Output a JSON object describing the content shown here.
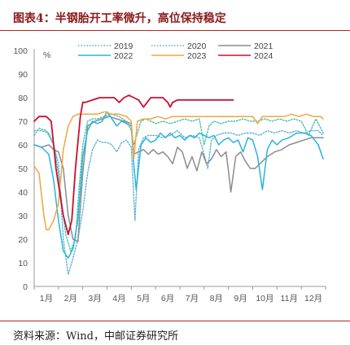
{
  "header": {
    "title": "图表4：半钢胎开工率微升，高位保持稳定",
    "source": "资料来源：Wind，中邮证券研究所"
  },
  "chart_data": {
    "type": "line",
    "title": "",
    "ylabel": "",
    "yunit": "%",
    "ylim": [
      0,
      100
    ],
    "yticks": [
      0,
      10,
      20,
      30,
      40,
      50,
      60,
      70,
      80,
      90,
      100
    ],
    "xlim": [
      1,
      13
    ],
    "categories": [
      "1月",
      "2月",
      "3月",
      "4月",
      "5月",
      "6月",
      "7月",
      "8月",
      "9月",
      "10月",
      "11月",
      "12月"
    ],
    "legend_position": "top",
    "grid": false,
    "series": [
      {
        "name": "2019",
        "color": "#3fbfa8",
        "style": "dotted",
        "x": [
          1.0,
          1.2,
          1.5,
          1.8,
          2.0,
          2.15,
          2.3,
          2.5,
          2.7,
          2.85,
          3.0,
          3.2,
          3.4,
          3.6,
          3.9,
          4.2,
          4.5,
          4.8,
          5.0,
          5.1,
          5.25,
          5.4,
          5.6,
          5.8,
          6.0,
          6.3,
          6.6,
          6.9,
          7.2,
          7.5,
          7.8,
          8.0,
          8.2,
          8.4,
          8.7,
          9.0,
          9.3,
          9.6,
          9.9,
          10.2,
          10.5,
          10.8,
          11.1,
          11.4,
          11.7,
          12.0,
          12.3,
          12.6,
          12.9
        ],
        "y": [
          64,
          67,
          66,
          60,
          48,
          34,
          22,
          15,
          20,
          42,
          60,
          70,
          71,
          71,
          72,
          73,
          72,
          70,
          66,
          60,
          65,
          70,
          71,
          70,
          69,
          70,
          69,
          70,
          71,
          70,
          71,
          60,
          68,
          70,
          69,
          70,
          70,
          71,
          70,
          70,
          71,
          70,
          71,
          70,
          71,
          70,
          64,
          71,
          65
        ]
      },
      {
        "name": "2020",
        "color": "#5ab0d8",
        "style": "dotted",
        "x": [
          1.0,
          1.3,
          1.6,
          1.8,
          2.0,
          2.2,
          2.4,
          2.6,
          2.8,
          3.0,
          3.2,
          3.4,
          3.6,
          3.8,
          4.0,
          4.2,
          4.4,
          4.6,
          4.8,
          5.0,
          5.15,
          5.3,
          5.5,
          5.7,
          6.0,
          6.3,
          6.6,
          6.9,
          7.2,
          7.5,
          7.8,
          8.0,
          8.15,
          8.3,
          8.5,
          8.8,
          9.1,
          9.4,
          9.7,
          10.0,
          10.3,
          10.6,
          10.9,
          11.2,
          11.5,
          11.8,
          12.1,
          12.4,
          12.7,
          12.9
        ],
        "y": [
          66,
          66,
          65,
          60,
          52,
          20,
          5,
          12,
          20,
          32,
          48,
          58,
          62,
          61,
          61,
          60,
          57,
          61,
          62,
          59,
          28,
          58,
          63,
          64,
          64,
          63,
          64,
          66,
          63,
          64,
          63,
          56,
          50,
          62,
          64,
          65,
          65,
          64,
          65,
          65,
          64,
          66,
          65,
          66,
          65,
          66,
          65,
          66,
          66,
          64
        ]
      },
      {
        "name": "2021",
        "color": "#8c8c8c",
        "style": "solid",
        "x": [
          1.0,
          1.3,
          1.6,
          1.8,
          2.0,
          2.2,
          2.4,
          2.6,
          2.8,
          3.0,
          3.2,
          3.5,
          3.8,
          4.1,
          4.4,
          4.7,
          5.0,
          5.1,
          5.3,
          5.5,
          5.7,
          5.9,
          6.1,
          6.3,
          6.5,
          6.7,
          6.9,
          7.1,
          7.3,
          7.5,
          7.7,
          7.9,
          8.1,
          8.3,
          8.5,
          8.7,
          8.9,
          9.0,
          9.1,
          9.3,
          9.5,
          9.7,
          9.9,
          10.1,
          10.3,
          10.6,
          10.9,
          11.2,
          11.5,
          11.8,
          12.1,
          12.4,
          12.7,
          12.9
        ],
        "y": [
          60,
          59,
          60,
          58,
          57,
          50,
          30,
          20,
          19,
          48,
          68,
          70,
          71,
          72,
          71,
          70,
          69,
          56,
          57,
          58,
          56,
          58,
          56,
          57,
          55,
          52,
          59,
          57,
          50,
          55,
          49,
          57,
          52,
          54,
          58,
          55,
          57,
          49,
          40,
          55,
          57,
          53,
          50,
          50,
          52,
          55,
          57,
          58,
          60,
          61,
          62,
          63,
          63,
          63
        ]
      },
      {
        "name": "2022",
        "color": "#29b4e0",
        "style": "solid",
        "x": [
          1.0,
          1.3,
          1.6,
          1.8,
          2.0,
          2.2,
          2.4,
          2.6,
          2.8,
          3.0,
          3.2,
          3.4,
          3.6,
          3.8,
          4.0,
          4.2,
          4.4,
          4.6,
          4.8,
          5.0,
          5.1,
          5.2,
          5.4,
          5.6,
          5.8,
          6.0,
          6.2,
          6.4,
          6.6,
          6.8,
          7.0,
          7.2,
          7.4,
          7.6,
          7.8,
          8.0,
          8.2,
          8.4,
          8.6,
          8.8,
          9.0,
          9.2,
          9.4,
          9.6,
          9.8,
          10.0,
          10.2,
          10.4,
          10.6,
          10.8,
          11.0,
          11.2,
          11.5,
          11.8,
          12.1,
          12.4,
          12.7,
          12.9
        ],
        "y": [
          60,
          59,
          56,
          45,
          28,
          15,
          12,
          16,
          28,
          55,
          66,
          70,
          69,
          70,
          74,
          71,
          68,
          70,
          69,
          68,
          52,
          41,
          60,
          63,
          61,
          62,
          65,
          63,
          65,
          63,
          64,
          62,
          64,
          63,
          65,
          64,
          63,
          64,
          60,
          62,
          63,
          61,
          62,
          57,
          63,
          62,
          55,
          41,
          58,
          62,
          60,
          62,
          63,
          65,
          65,
          64,
          60,
          54
        ]
      },
      {
        "name": "2023",
        "color": "#f5a442",
        "style": "solid",
        "x": [
          1.0,
          1.2,
          1.4,
          1.5,
          1.6,
          1.8,
          2.0,
          2.2,
          2.4,
          2.6,
          2.8,
          3.0,
          3.3,
          3.6,
          3.9,
          4.2,
          4.5,
          4.8,
          5.0,
          5.1,
          5.25,
          5.5,
          5.8,
          6.1,
          6.4,
          6.7,
          7.0,
          7.3,
          7.6,
          7.9,
          8.2,
          8.5,
          8.8,
          9.1,
          9.4,
          9.7,
          10.0,
          10.2,
          10.4,
          10.7,
          11.0,
          11.3,
          11.6,
          11.9,
          12.2,
          12.5,
          12.8,
          12.9
        ],
        "y": [
          51,
          48,
          30,
          24,
          24,
          28,
          35,
          58,
          68,
          72,
          73,
          73,
          73,
          73,
          74,
          73,
          73,
          72,
          70,
          54,
          70,
          71,
          71,
          72,
          71,
          72,
          72,
          72,
          72,
          72,
          72,
          72,
          72,
          72,
          72,
          72,
          72,
          69,
          72,
          72,
          72,
          72,
          73,
          72,
          73,
          72,
          72,
          71
        ]
      },
      {
        "name": "2024",
        "color": "#c8102e",
        "style": "solid",
        "x": [
          1.0,
          1.2,
          1.5,
          1.7,
          1.8,
          1.9,
          2.05,
          2.2,
          2.4,
          2.55,
          2.7,
          2.9,
          3.0,
          3.1,
          3.4,
          3.7,
          4.0,
          4.3,
          4.5,
          4.7,
          4.9,
          5.1,
          5.3,
          5.5,
          5.8,
          6.1,
          6.3,
          6.5,
          6.6,
          6.7,
          6.9,
          7.2,
          7.6,
          8.0,
          8.4,
          8.8,
          9.2
        ],
        "y": [
          70,
          72,
          72,
          70,
          60,
          50,
          40,
          30,
          22,
          28,
          50,
          72,
          78,
          78,
          79,
          80,
          80,
          80,
          78,
          80,
          81,
          80,
          79,
          76,
          80,
          80,
          80,
          78,
          76,
          78,
          79,
          79,
          79,
          79,
          79,
          79,
          79
        ]
      }
    ]
  }
}
